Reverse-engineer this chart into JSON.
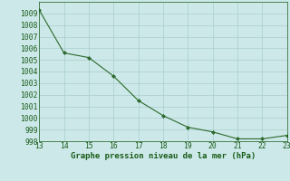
{
  "x": [
    13,
    14,
    15,
    16,
    17,
    18,
    19,
    20,
    21,
    22,
    23
  ],
  "y": [
    1009.3,
    1005.6,
    1005.2,
    1003.6,
    1001.5,
    1000.2,
    999.2,
    998.8,
    998.2,
    998.2,
    998.5
  ],
  "xlabel": "Graphe pression niveau de la mer (hPa)",
  "xlim": [
    13,
    23
  ],
  "ylim": [
    998,
    1010
  ],
  "yticks": [
    998,
    999,
    1000,
    1001,
    1002,
    1003,
    1004,
    1005,
    1006,
    1007,
    1008,
    1009
  ],
  "xticks": [
    13,
    14,
    15,
    16,
    17,
    18,
    19,
    20,
    21,
    22,
    23
  ],
  "line_color": "#2d6a2d",
  "marker_color": "#2d6a2d",
  "bg_color": "#cce8e8",
  "grid_color": "#aacece",
  "tick_label_color": "#1a5c1a",
  "xlabel_color": "#1a5c1a",
  "xlabel_fontsize": 6.5,
  "tick_fontsize": 5.8
}
